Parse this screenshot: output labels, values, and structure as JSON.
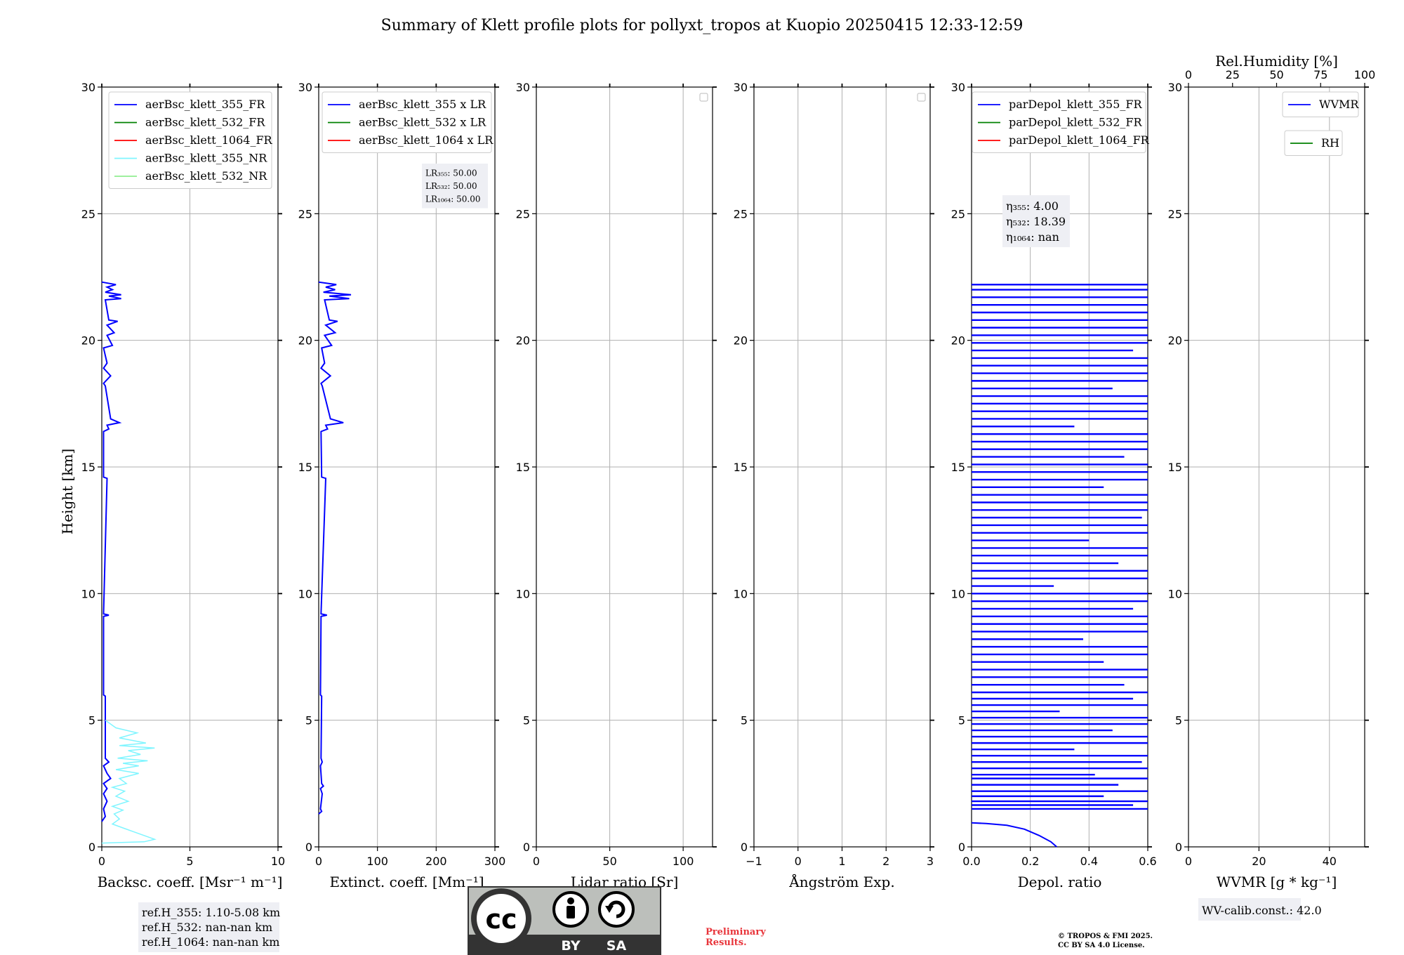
{
  "title": "Summary of Klett profile plots for pollyxt_tropos at Kuopio 20250415 12:33-12:59",
  "ylabel": "Height [km]",
  "colors": {
    "blue": "#0000ff",
    "green": "#008000",
    "red": "#ff0000",
    "cyan": "#7ff5ff",
    "lightgreen": "#90ee90"
  },
  "panels": [
    {
      "xlabel": "Backsc. coeff. [Msr⁻¹ m⁻¹]",
      "xticks": [
        0,
        5,
        10
      ],
      "xticklabels": [
        "0",
        "5",
        "10"
      ],
      "xlim": [
        0,
        10
      ],
      "legend": [
        "aerBsc_klett_355_FR",
        "aerBsc_klett_532_FR",
        "aerBsc_klett_1064_FR",
        "aerBsc_klett_355_NR",
        "aerBsc_klett_532_NR"
      ]
    },
    {
      "xlabel": "Extinct. coeff. [Mm⁻¹]",
      "xticks": [
        0,
        100,
        200,
        300
      ],
      "xticklabels": [
        "0",
        "100",
        "200",
        "300"
      ],
      "xlim": [
        0,
        300
      ],
      "legend": [
        "aerBsc_klett_355 x LR",
        "aerBsc_klett_532 x LR",
        "aerBsc_klett_1064 x LR"
      ]
    },
    {
      "xlabel": "Lidar ratio [Sr]",
      "xticks": [
        0,
        50,
        100
      ],
      "xticklabels": [
        "0",
        "50",
        "100"
      ],
      "xlim": [
        0,
        120
      ],
      "legend": []
    },
    {
      "xlabel": "Ångström Exp.",
      "xticks": [
        -1,
        0,
        1,
        2,
        3
      ],
      "xticklabels": [
        "−1",
        "0",
        "1",
        "2",
        "3"
      ],
      "xlim": [
        -1,
        3
      ],
      "legend": []
    },
    {
      "xlabel": "Depol. ratio",
      "xticks": [
        0,
        0.2,
        0.4,
        0.6
      ],
      "xticklabels": [
        "0.0",
        "0.2",
        "0.4",
        "0.6"
      ],
      "xlim": [
        0,
        0.6
      ],
      "legend": [
        "parDepol_klett_355_FR",
        "parDepol_klett_532_FR",
        "parDepol_klett_1064_FR"
      ]
    },
    {
      "xlabel": "WVMR [g * kg⁻¹]",
      "xticks": [
        0,
        20,
        40
      ],
      "xticklabels": [
        "0",
        "20",
        "40"
      ],
      "xlim": [
        0,
        50
      ],
      "legend": [
        "WVMR",
        "RH"
      ],
      "top_label": "Rel.Humidity [%]",
      "top_ticks": [
        0,
        25,
        50,
        75,
        100
      ],
      "top_ticklabels": [
        "0",
        "25",
        "50",
        "75",
        "100"
      ]
    }
  ],
  "annotations": {
    "lr": [
      "LR₃₅₅: 50.00",
      "LR₅₃₂: 50.00",
      "LR₁₀₆₄: 50.00"
    ],
    "eta": [
      "η₃₅₅: 4.00",
      "η₅₃₂: 18.39",
      "η₁₀₆₄: nan"
    ],
    "refH": [
      "ref.H_355: 1.10-5.08 km",
      "ref.H_532: nan-nan km",
      "ref.H_1064: nan-nan km"
    ],
    "wv_calib": "WV-calib.const.: 42.0",
    "preliminary": [
      "Preliminary",
      "Results."
    ],
    "copyright": [
      "© TROPOS & FMI 2025.",
      "CC BY SA 4.0 License."
    ],
    "cc_logo": {
      "mark": "cc",
      "by": "BY",
      "sa": "SA"
    }
  },
  "chart_data": {
    "type": "line",
    "ylim": [
      0,
      30
    ],
    "yticks": [
      0,
      5,
      10,
      15,
      20,
      25,
      30
    ],
    "grid": true,
    "series": [
      {
        "panel": 0,
        "name": "aerBsc_klett_355_FR",
        "color": "blue",
        "points": [
          [
            0,
            22.3
          ],
          [
            0.8,
            22.2
          ],
          [
            0.3,
            22.1
          ],
          [
            0.6,
            22.0
          ],
          [
            0.2,
            21.9
          ],
          [
            1.1,
            21.8
          ],
          [
            0.4,
            21.75
          ],
          [
            1.1,
            21.65
          ],
          [
            0.2,
            21.6
          ],
          [
            0.4,
            20.8
          ],
          [
            0.9,
            20.75
          ],
          [
            0.3,
            20.6
          ],
          [
            0.7,
            20.3
          ],
          [
            0.3,
            20.2
          ],
          [
            0.6,
            19.8
          ],
          [
            0.1,
            19.7
          ],
          [
            0.3,
            19.1
          ],
          [
            0.1,
            18.9
          ],
          [
            0.5,
            18.6
          ],
          [
            0.1,
            18.3
          ],
          [
            0.2,
            18.2
          ],
          [
            0.5,
            16.9
          ],
          [
            1.0,
            16.75
          ],
          [
            0.3,
            16.65
          ],
          [
            0.4,
            16.5
          ],
          [
            0.1,
            16.4
          ],
          [
            0.1,
            14.6
          ],
          [
            0.3,
            14.55
          ],
          [
            0.1,
            9.2
          ],
          [
            0.4,
            9.15
          ],
          [
            0.1,
            9.1
          ],
          [
            0.1,
            6.0
          ],
          [
            0.2,
            5.95
          ],
          [
            0.2,
            3.5
          ],
          [
            0.4,
            3.35
          ],
          [
            0.1,
            3.2
          ],
          [
            0.3,
            2.9
          ],
          [
            0.5,
            2.7
          ],
          [
            0.1,
            2.5
          ],
          [
            0.3,
            2.3
          ],
          [
            0.1,
            2.1
          ],
          [
            0.3,
            1.8
          ],
          [
            0.1,
            1.5
          ],
          [
            0.2,
            1.2
          ],
          [
            0,
            1.0
          ]
        ]
      },
      {
        "panel": 0,
        "name": "aerBsc_klett_355_NR",
        "color": "cyan",
        "points": [
          [
            0.2,
            5.0
          ],
          [
            0.8,
            4.7
          ],
          [
            2.0,
            4.5
          ],
          [
            1.0,
            4.3
          ],
          [
            2.5,
            4.1
          ],
          [
            1.0,
            4.0
          ],
          [
            3.0,
            3.9
          ],
          [
            1.5,
            3.8
          ],
          [
            2.2,
            3.65
          ],
          [
            0.9,
            3.5
          ],
          [
            2.6,
            3.4
          ],
          [
            1.2,
            3.3
          ],
          [
            2.1,
            3.2
          ],
          [
            0.8,
            3.05
          ],
          [
            2.1,
            2.9
          ],
          [
            1.0,
            2.7
          ],
          [
            1.4,
            2.5
          ],
          [
            0.6,
            2.35
          ],
          [
            1.3,
            2.2
          ],
          [
            0.8,
            2.0
          ],
          [
            1.5,
            1.8
          ],
          [
            0.6,
            1.6
          ],
          [
            1.2,
            1.45
          ],
          [
            0.7,
            1.3
          ],
          [
            1.0,
            1.1
          ],
          [
            0.6,
            0.9
          ],
          [
            1.2,
            0.75
          ],
          [
            1.8,
            0.6
          ],
          [
            2.4,
            0.45
          ],
          [
            3.0,
            0.3
          ],
          [
            2.4,
            0.2
          ],
          [
            0,
            0.15
          ]
        ]
      },
      {
        "panel": 1,
        "name": "aerBsc_klett_355 x LR",
        "color": "blue",
        "points": [
          [
            0,
            22.3
          ],
          [
            30,
            22.2
          ],
          [
            12,
            22.1
          ],
          [
            28,
            22.0
          ],
          [
            8,
            21.9
          ],
          [
            55,
            21.8
          ],
          [
            18,
            21.75
          ],
          [
            52,
            21.65
          ],
          [
            10,
            21.6
          ],
          [
            18,
            20.8
          ],
          [
            32,
            20.75
          ],
          [
            12,
            20.6
          ],
          [
            28,
            20.3
          ],
          [
            10,
            20.2
          ],
          [
            22,
            19.8
          ],
          [
            5,
            19.7
          ],
          [
            10,
            19.1
          ],
          [
            4,
            18.9
          ],
          [
            20,
            18.6
          ],
          [
            4,
            18.3
          ],
          [
            6,
            18.2
          ],
          [
            20,
            16.9
          ],
          [
            42,
            16.75
          ],
          [
            12,
            16.65
          ],
          [
            15,
            16.5
          ],
          [
            4,
            16.4
          ],
          [
            5,
            14.6
          ],
          [
            12,
            14.55
          ],
          [
            4,
            9.2
          ],
          [
            14,
            9.15
          ],
          [
            4,
            9.1
          ],
          [
            3,
            6.0
          ],
          [
            5,
            5.95
          ],
          [
            4,
            3.5
          ],
          [
            6,
            3.35
          ],
          [
            3,
            3.2
          ],
          [
            5,
            2.5
          ],
          [
            8,
            2.4
          ],
          [
            3,
            2.3
          ],
          [
            6,
            2.1
          ],
          [
            3,
            1.5
          ],
          [
            5,
            1.4
          ],
          [
            0,
            1.3
          ]
        ]
      },
      {
        "panel": 4,
        "name": "parDepol_klett_355_FR",
        "color": "blue",
        "y_values_km": [
          1.5,
          1.65,
          1.8,
          2.0,
          2.2,
          2.45,
          2.7,
          2.85,
          3.1,
          3.35,
          3.6,
          3.85,
          4.1,
          4.35,
          4.6,
          4.85,
          5.1,
          5.35,
          5.6,
          5.85,
          6.1,
          6.4,
          6.7,
          7.0,
          7.3,
          7.6,
          7.9,
          8.2,
          8.5,
          8.8,
          9.1,
          9.4,
          9.7,
          10.0,
          10.3,
          10.6,
          10.9,
          11.2,
          11.5,
          11.8,
          12.1,
          12.4,
          12.7,
          13.0,
          13.3,
          13.6,
          13.9,
          14.2,
          14.5,
          14.8,
          15.1,
          15.4,
          15.7,
          16.0,
          16.3,
          16.6,
          16.9,
          17.2,
          17.5,
          17.8,
          18.1,
          18.4,
          18.7,
          19.0,
          19.3,
          19.6,
          19.9,
          20.2,
          20.5,
          20.8,
          21.1,
          21.4,
          21.7,
          22.0,
          22.2
        ],
        "x_values": [
          0.6,
          0.55,
          0.6,
          0.45,
          0.6,
          0.5,
          0.6,
          0.42,
          0.6,
          0.58,
          0.6,
          0.35,
          0.6,
          0.6,
          0.48,
          0.6,
          0.6,
          0.3,
          0.6,
          0.55,
          0.6,
          0.52,
          0.6,
          0.6,
          0.45,
          0.6,
          0.6,
          0.38,
          0.6,
          0.6,
          0.6,
          0.55,
          0.6,
          0.6,
          0.28,
          0.6,
          0.6,
          0.5,
          0.6,
          0.6,
          0.4,
          0.6,
          0.6,
          0.58,
          0.6,
          0.6,
          0.6,
          0.45,
          0.6,
          0.6,
          0.6,
          0.52,
          0.6,
          0.6,
          0.6,
          0.35,
          0.6,
          0.6,
          0.6,
          0.6,
          0.48,
          0.6,
          0.6,
          0.6,
          0.6,
          0.55,
          0.6,
          0.6,
          0.6,
          0.6,
          0.6,
          0.6,
          0.6,
          0.6,
          0.6
        ],
        "near_surface": [
          [
            0.29,
            0
          ],
          [
            0.27,
            0.2
          ],
          [
            0.23,
            0.45
          ],
          [
            0.18,
            0.7
          ],
          [
            0.12,
            0.85
          ],
          [
            0.05,
            0.92
          ],
          [
            0,
            0.95
          ]
        ]
      }
    ]
  }
}
